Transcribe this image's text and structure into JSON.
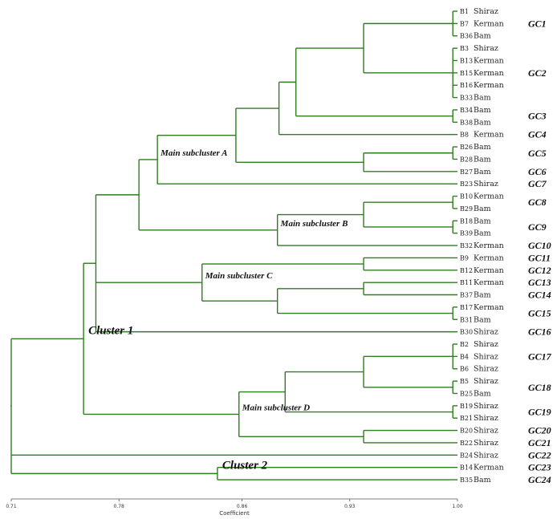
{
  "chart_data": {
    "type": "dendrogram",
    "xlabel": "Coefficient",
    "xlim": [
      0.71,
      1.0
    ],
    "ticks": [
      {
        "value": 0.71,
        "label": "0.71"
      },
      {
        "value": 0.78,
        "label": "0.78"
      },
      {
        "value": 0.86,
        "label": "0.86"
      },
      {
        "value": 0.93,
        "label": "0.93"
      },
      {
        "value": 1.0,
        "label": "1.00"
      }
    ],
    "leaves": [
      {
        "code": "B1",
        "city": "Shiraz"
      },
      {
        "code": "B7",
        "city": "Kerman"
      },
      {
        "code": "B36",
        "city": "Bam"
      },
      {
        "code": "B3",
        "city": "Shiraz"
      },
      {
        "code": "B13",
        "city": "Kerman"
      },
      {
        "code": "B15",
        "city": "Kerman"
      },
      {
        "code": "B16",
        "city": "Kerman"
      },
      {
        "code": "B33",
        "city": "Bam"
      },
      {
        "code": "B34",
        "city": "Bam"
      },
      {
        "code": "B38",
        "city": "Bam"
      },
      {
        "code": "B8",
        "city": "Kerman"
      },
      {
        "code": "B26",
        "city": "Bam"
      },
      {
        "code": "B28",
        "city": "Bam"
      },
      {
        "code": "B27",
        "city": "Bam"
      },
      {
        "code": "B23",
        "city": "Shiraz"
      },
      {
        "code": "B10",
        "city": "Kerman"
      },
      {
        "code": "B29",
        "city": "Bam"
      },
      {
        "code": "B18",
        "city": "Bam"
      },
      {
        "code": "B39",
        "city": "Bam"
      },
      {
        "code": "B32",
        "city": "Kerman"
      },
      {
        "code": "B9",
        "city": "Kerman"
      },
      {
        "code": "B12",
        "city": "Kerman"
      },
      {
        "code": "B11",
        "city": "Kerman"
      },
      {
        "code": "B37",
        "city": "Bam"
      },
      {
        "code": "B17",
        "city": "Kerman"
      },
      {
        "code": "B31",
        "city": "Bam"
      },
      {
        "code": "B30",
        "city": "Shiraz"
      },
      {
        "code": "B2",
        "city": "Shiraz"
      },
      {
        "code": "B4",
        "city": "Shiraz"
      },
      {
        "code": "B6",
        "city": "Shiraz"
      },
      {
        "code": "B5",
        "city": "Shiraz"
      },
      {
        "code": "B25",
        "city": "Bam"
      },
      {
        "code": "B19",
        "city": "Shiraz"
      },
      {
        "code": "B21",
        "city": "Shiraz"
      },
      {
        "code": "B20",
        "city": "Shiraz"
      },
      {
        "code": "B22",
        "city": "Shiraz"
      },
      {
        "code": "B24",
        "city": "Shiraz"
      },
      {
        "code": "B14",
        "city": "Kerman"
      },
      {
        "code": "B35",
        "city": "Bam"
      }
    ],
    "groups": [
      {
        "label": "GC1",
        "first": 0,
        "last": 2
      },
      {
        "label": "GC2",
        "first": 3,
        "last": 7
      },
      {
        "label": "GC3",
        "first": 8,
        "last": 9
      },
      {
        "label": "GC4",
        "first": 10,
        "last": 10
      },
      {
        "label": "GC5",
        "first": 11,
        "last": 12
      },
      {
        "label": "GC6",
        "first": 13,
        "last": 13
      },
      {
        "label": "GC7",
        "first": 14,
        "last": 14
      },
      {
        "label": "GC8",
        "first": 15,
        "last": 16
      },
      {
        "label": "GC9",
        "first": 17,
        "last": 18
      },
      {
        "label": "GC10",
        "first": 19,
        "last": 19
      },
      {
        "label": "GC11",
        "first": 20,
        "last": 20
      },
      {
        "label": "GC12",
        "first": 21,
        "last": 21
      },
      {
        "label": "GC13",
        "first": 22,
        "last": 22
      },
      {
        "label": "GC14",
        "first": 23,
        "last": 23
      },
      {
        "label": "GC15",
        "first": 24,
        "last": 25
      },
      {
        "label": "GC16",
        "first": 26,
        "last": 26
      },
      {
        "label": "GC17",
        "first": 27,
        "last": 29
      },
      {
        "label": "GC18",
        "first": 30,
        "last": 31
      },
      {
        "label": "GC19",
        "first": 32,
        "last": 33
      },
      {
        "label": "GC20",
        "first": 34,
        "last": 34
      },
      {
        "label": "GC21",
        "first": 35,
        "last": 35
      },
      {
        "label": "GC22",
        "first": 36,
        "last": 36
      },
      {
        "label": "GC23",
        "first": 37,
        "last": 37
      },
      {
        "label": "GC24",
        "first": 38,
        "last": 38
      }
    ],
    "tree": {
      "h": 0.71,
      "label": "root",
      "children": [
        {
          "h": 0.757,
          "label": "Cluster 1",
          "children": [
            {
              "h": 0.765,
              "children": [
                {
                  "h": 0.793,
                  "children": [
                    {
                      "h": 0.805,
                      "label": "Main subcluster A",
                      "children": [
                        {
                          "h": 0.856,
                          "children": [
                            {
                              "h": 0.884,
                              "children": [
                                {
                                  "h": 0.895,
                                  "children": [
                                    {
                                      "h": 0.939,
                                      "children": [
                                        {
                                          "h": 0.997,
                                          "leaves": [
                                            0,
                                            1,
                                            2
                                          ]
                                        },
                                        {
                                          "h": 0.997,
                                          "leaves": [
                                            3,
                                            4,
                                            5,
                                            6,
                                            7
                                          ]
                                        }
                                      ]
                                    },
                                    {
                                      "h": 0.997,
                                      "leaves": [
                                        8,
                                        9
                                      ]
                                    }
                                  ]
                                },
                                {
                                  "leaf": 10
                                }
                              ]
                            },
                            {
                              "h": 0.939,
                              "children": [
                                {
                                  "h": 0.997,
                                  "leaves": [
                                    11,
                                    12
                                  ]
                                },
                                {
                                  "leaf": 13
                                }
                              ]
                            }
                          ]
                        },
                        {
                          "leaf": 14
                        }
                      ]
                    },
                    {
                      "h": 0.883,
                      "label": "Main subcluster B",
                      "children": [
                        {
                          "h": 0.939,
                          "children": [
                            {
                              "h": 0.997,
                              "leaves": [
                                15,
                                16
                              ]
                            },
                            {
                              "h": 0.997,
                              "leaves": [
                                17,
                                18
                              ]
                            }
                          ]
                        },
                        {
                          "leaf": 19
                        }
                      ]
                    }
                  ]
                },
                {
                  "h": 0.834,
                  "label": "Main subcluster C",
                  "children": [
                    {
                      "h": 0.939,
                      "children": [
                        {
                          "leaf": 20
                        },
                        {
                          "leaf": 21
                        }
                      ]
                    },
                    {
                      "h": 0.883,
                      "children": [
                        {
                          "h": 0.939,
                          "children": [
                            {
                              "leaf": 22
                            },
                            {
                              "leaf": 23
                            }
                          ]
                        },
                        {
                          "h": 0.997,
                          "leaves": [
                            24,
                            25
                          ]
                        }
                      ]
                    }
                  ]
                },
                {
                  "leaf": 26
                }
              ]
            },
            {
              "h": 0.858,
              "label": "Main subcluster D",
              "children": [
                {
                  "h": 0.888,
                  "children": [
                    {
                      "h": 0.939,
                      "children": [
                        {
                          "h": 0.997,
                          "leaves": [
                            27,
                            28,
                            29
                          ]
                        },
                        {
                          "h": 0.997,
                          "leaves": [
                            30,
                            31
                          ]
                        }
                      ]
                    },
                    {
                      "h": 0.997,
                      "leaves": [
                        32,
                        33
                      ]
                    }
                  ]
                },
                {
                  "h": 0.939,
                  "children": [
                    {
                      "leaf": 34
                    },
                    {
                      "leaf": 35
                    }
                  ]
                }
              ]
            }
          ]
        },
        {
          "leaf": 36
        },
        {
          "h": 0.844,
          "label": "Cluster 2",
          "children": [
            {
              "leaf": 37
            },
            {
              "leaf": 38
            }
          ]
        }
      ]
    }
  }
}
